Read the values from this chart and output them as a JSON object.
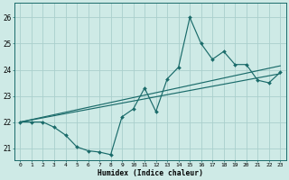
{
  "xlabel": "Humidex (Indice chaleur)",
  "xlim": [
    -0.5,
    23.5
  ],
  "ylim": [
    20.55,
    26.55
  ],
  "yticks": [
    21,
    22,
    23,
    24,
    25,
    26
  ],
  "xtick_labels": [
    "0",
    "1",
    "2",
    "3",
    "4",
    "5",
    "6",
    "7",
    "8",
    "9",
    "10",
    "11",
    "12",
    "13",
    "14",
    "15",
    "16",
    "17",
    "18",
    "19",
    "20",
    "21",
    "22",
    "23"
  ],
  "xtick_vals": [
    0,
    1,
    2,
    3,
    4,
    5,
    6,
    7,
    8,
    9,
    10,
    11,
    12,
    13,
    14,
    15,
    16,
    17,
    18,
    19,
    20,
    21,
    22,
    23
  ],
  "bg_color": "#ceeae6",
  "grid_color": "#aacfcc",
  "line_color": "#1a6b6a",
  "series_zigzag": {
    "x": [
      0,
      1,
      2,
      3,
      4,
      5,
      6,
      7,
      8,
      9,
      10,
      11,
      12,
      13,
      14,
      15,
      16,
      17,
      18,
      19,
      20,
      21,
      22,
      23
    ],
    "y": [
      22.0,
      22.0,
      22.0,
      21.8,
      21.5,
      21.05,
      20.9,
      20.85,
      20.75,
      22.2,
      22.5,
      23.3,
      22.4,
      23.65,
      24.1,
      26.0,
      25.0,
      24.4,
      24.7,
      24.2,
      24.2,
      23.6,
      23.5,
      23.9
    ]
  },
  "series_trend1": {
    "x": [
      0,
      23
    ],
    "y": [
      22.0,
      24.15
    ]
  },
  "series_trend2": {
    "x": [
      0,
      23
    ],
    "y": [
      22.0,
      23.85
    ]
  }
}
